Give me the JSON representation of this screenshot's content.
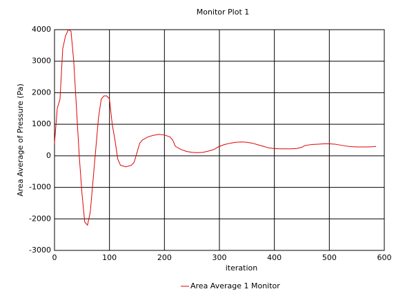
{
  "chart_data": {
    "type": "line",
    "title": "Monitor Plot 1",
    "x_label": "iteration",
    "y_label": "Area Average of Pressure (Pa)",
    "xlim": [
      0,
      600
    ],
    "xticks": [
      0,
      100,
      200,
      300,
      400,
      500,
      600
    ],
    "ylim": [
      -3000,
      4000
    ],
    "yticks": [
      -3000,
      -2000,
      -1000,
      0,
      1000,
      2000,
      3000,
      4000
    ],
    "grid": true,
    "legend": "bottom",
    "x": [
      0,
      5,
      10,
      15,
      20,
      25,
      30,
      35,
      40,
      45,
      50,
      55,
      60,
      65,
      70,
      75,
      80,
      85,
      90,
      95,
      100,
      105,
      110,
      115,
      120,
      130,
      140,
      145,
      150,
      155,
      160,
      170,
      180,
      190,
      200,
      210,
      215,
      220,
      230,
      240,
      250,
      260,
      270,
      280,
      290,
      300,
      310,
      320,
      330,
      340,
      350,
      360,
      370,
      380,
      390,
      400,
      410,
      420,
      430,
      440,
      450,
      455,
      460,
      470,
      480,
      490,
      500,
      510,
      520,
      530,
      540,
      550,
      560,
      570,
      580,
      585
    ],
    "series": [
      {
        "name": "Area Average 1 Monitor",
        "color": "#e00000",
        "values": [
          400,
          1500,
          1800,
          3400,
          3800,
          4000,
          3950,
          3000,
          1500,
          0,
          -1200,
          -2100,
          -2200,
          -1800,
          -800,
          200,
          1200,
          1800,
          1900,
          1900,
          1800,
          1000,
          500,
          -100,
          -300,
          -350,
          -300,
          -200,
          100,
          400,
          500,
          600,
          650,
          680,
          660,
          600,
          500,
          300,
          200,
          140,
          110,
          100,
          110,
          150,
          200,
          300,
          360,
          400,
          430,
          440,
          430,
          400,
          350,
          300,
          250,
          230,
          220,
          220,
          220,
          230,
          270,
          320,
          340,
          360,
          370,
          380,
          380,
          370,
          340,
          310,
          290,
          280,
          280,
          280,
          290,
          300
        ]
      }
    ]
  }
}
